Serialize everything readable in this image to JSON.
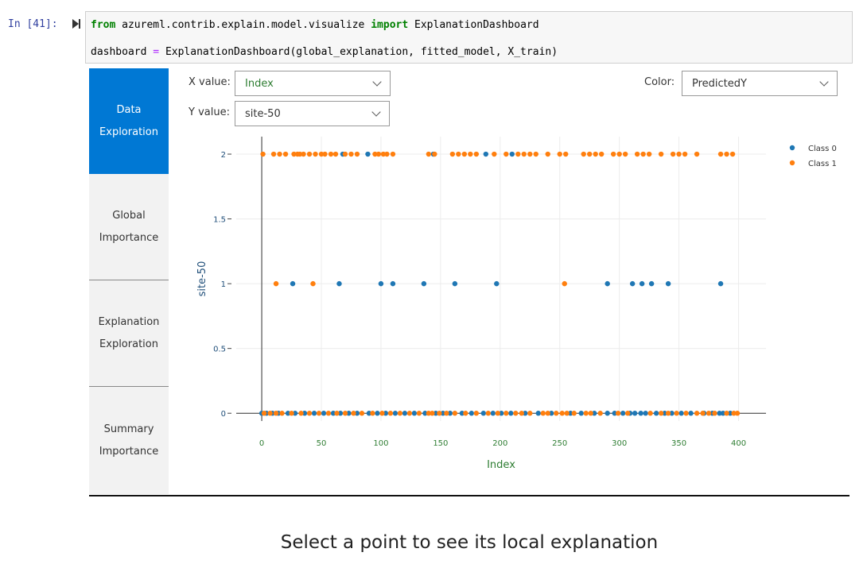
{
  "cell": {
    "prompt": "In [41]:",
    "lines": [
      [
        "from",
        " azureml.contrib.explain.model.visualize ",
        "import",
        " ExplanationDashboard"
      ],
      [
        "dashboard",
        " = ",
        "ExplanationDashboard(global_explanation, fitted_model, X_train)"
      ]
    ]
  },
  "tabs": [
    "Data Exploration",
    "Global Importance",
    "Explanation Exploration",
    "Summary Importance"
  ],
  "controls": {
    "x_label": "X value:",
    "x_value": "Index",
    "y_label": "Y value:",
    "y_value": "site-50",
    "color_label": "Color:",
    "color_value": "PredictedY"
  },
  "chart_data": {
    "type": "scatter",
    "x_label": "Index",
    "y_label": "site-50",
    "xlim": [
      -21.4,
      423
    ],
    "ylim": [
      -0.06,
      2.135
    ],
    "xticks": [
      0,
      50,
      100,
      150,
      200,
      250,
      300,
      350,
      400
    ],
    "yticks": [
      0,
      0.5,
      1,
      1.5,
      2
    ],
    "grid": true,
    "legend": "top-right",
    "series": [
      {
        "name": "Class 0",
        "color": "#1f77b4",
        "x": [
          0,
          4,
          9,
          14,
          22,
          28,
          36,
          44,
          52,
          60,
          66,
          73,
          80,
          90,
          97,
          104,
          112,
          120,
          128,
          137,
          146,
          152,
          158,
          168,
          176,
          186,
          194,
          201,
          209,
          221,
          232,
          243,
          259,
          268,
          279,
          290,
          296,
          303,
          309,
          313,
          318,
          322,
          331,
          338,
          344,
          352,
          360,
          371,
          378,
          384,
          387,
          393,
          26,
          65,
          100,
          110,
          136,
          162,
          197,
          290,
          311,
          319,
          327,
          341,
          385,
          68,
          89,
          144,
          188,
          210
        ],
        "values": [
          0,
          0,
          0,
          0,
          0,
          0,
          0,
          0,
          0,
          0,
          0,
          0,
          0,
          0,
          0,
          0,
          0,
          0,
          0,
          0,
          0,
          0,
          0,
          0,
          0,
          0,
          0,
          0,
          0,
          0,
          0,
          0,
          0,
          0,
          0,
          0,
          0,
          0,
          0,
          0,
          0,
          0,
          0,
          0,
          0,
          0,
          0,
          0,
          0,
          0,
          0,
          0,
          1,
          1,
          1,
          1,
          1,
          1,
          1,
          1,
          1,
          1,
          1,
          1,
          1,
          2,
          2,
          2,
          2,
          2
        ]
      },
      {
        "name": "Class 1",
        "color": "#ff7f0e",
        "x": [
          2,
          7,
          12,
          17,
          25,
          33,
          40,
          48,
          56,
          63,
          70,
          77,
          84,
          93,
          101,
          108,
          116,
          124,
          132,
          140,
          143,
          149,
          155,
          162,
          171,
          180,
          190,
          198,
          205,
          213,
          218,
          225,
          236,
          240,
          247,
          252,
          256,
          262,
          272,
          276,
          284,
          299,
          307,
          326,
          335,
          341,
          348,
          356,
          365,
          370,
          375,
          380,
          390,
          396,
          399,
          12,
          43,
          254,
          1,
          10,
          15,
          20,
          27,
          30,
          32,
          35,
          40,
          45,
          50,
          53,
          58,
          62,
          70,
          75,
          80,
          95,
          98,
          102,
          105,
          110,
          140,
          145,
          160,
          165,
          170,
          175,
          180,
          195,
          205,
          215,
          220,
          225,
          230,
          240,
          250,
          255,
          270,
          275,
          280,
          285,
          295,
          300,
          305,
          315,
          320,
          325,
          335,
          345,
          350,
          355,
          365,
          385,
          390,
          395
        ],
        "values": [
          0,
          0,
          0,
          0,
          0,
          0,
          0,
          0,
          0,
          0,
          0,
          0,
          0,
          0,
          0,
          0,
          0,
          0,
          0,
          0,
          0,
          0,
          0,
          0,
          0,
          0,
          0,
          0,
          0,
          0,
          0,
          0,
          0,
          0,
          0,
          0,
          0,
          0,
          0,
          0,
          0,
          0,
          0,
          0,
          0,
          0,
          0,
          0,
          0,
          0,
          0,
          0,
          0,
          0,
          0,
          1,
          1,
          1,
          2,
          2,
          2,
          2,
          2,
          2,
          2,
          2,
          2,
          2,
          2,
          2,
          2,
          2,
          2,
          2,
          2,
          2,
          2,
          2,
          2,
          2,
          2,
          2,
          2,
          2,
          2,
          2,
          2,
          2,
          2,
          2,
          2,
          2,
          2,
          2,
          2,
          2,
          2,
          2,
          2,
          2,
          2,
          2,
          2,
          2,
          2,
          2,
          2,
          2,
          2,
          2,
          2,
          2,
          2,
          2
        ]
      }
    ]
  },
  "footer": "Select a point to see its local explanation"
}
